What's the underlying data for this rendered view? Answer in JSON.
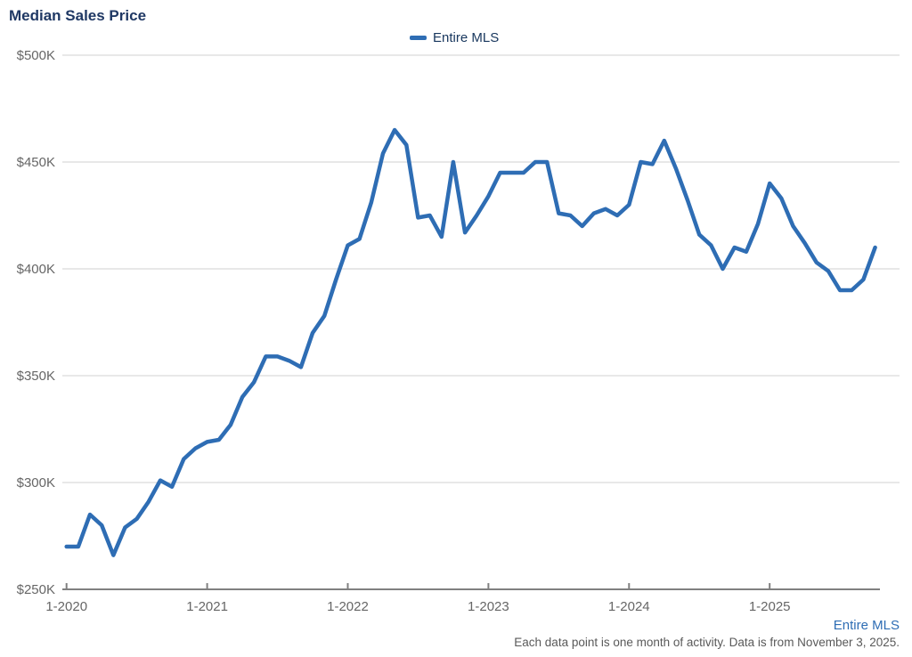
{
  "title": "Median Sales Price",
  "legend": {
    "label": "Entire MLS"
  },
  "footer": {
    "link_label": "Entire MLS",
    "note": "Each data point is one month of activity. Data is from November 3, 2025."
  },
  "colors": {
    "line": "#2e6db4",
    "title": "#1f3864",
    "legend_text": "#17365d",
    "axis_text": "#666666",
    "grid_line": "#d9d9d9",
    "axis_line": "#808080",
    "footer_text": "#595959",
    "link": "#2e6db4",
    "background": "#ffffff"
  },
  "chart_data": {
    "type": "line",
    "title": "Median Sales Price",
    "series_name": "Entire MLS",
    "unit": "USD thousands",
    "ylim": [
      250,
      500
    ],
    "grid": "horizontal",
    "legend_position": "top-center",
    "y_ticks": [
      {
        "value": 250,
        "label": "$250K"
      },
      {
        "value": 300,
        "label": "$300K"
      },
      {
        "value": 350,
        "label": "$350K"
      },
      {
        "value": 400,
        "label": "$400K"
      },
      {
        "value": 450,
        "label": "$450K"
      },
      {
        "value": 500,
        "label": "$500K"
      }
    ],
    "x_ticks": [
      {
        "month_index": 0,
        "label": "1-2020"
      },
      {
        "month_index": 12,
        "label": "1-2021"
      },
      {
        "month_index": 24,
        "label": "1-2022"
      },
      {
        "month_index": 36,
        "label": "1-2023"
      },
      {
        "month_index": 48,
        "label": "1-2024"
      },
      {
        "month_index": 60,
        "label": "1-2025"
      }
    ],
    "months": [
      "1-2020",
      "2-2020",
      "3-2020",
      "4-2020",
      "5-2020",
      "6-2020",
      "7-2020",
      "8-2020",
      "9-2020",
      "10-2020",
      "11-2020",
      "12-2020",
      "1-2021",
      "2-2021",
      "3-2021",
      "4-2021",
      "5-2021",
      "6-2021",
      "7-2021",
      "8-2021",
      "9-2021",
      "10-2021",
      "11-2021",
      "12-2021",
      "1-2022",
      "2-2022",
      "3-2022",
      "4-2022",
      "5-2022",
      "6-2022",
      "7-2022",
      "8-2022",
      "9-2022",
      "10-2022",
      "11-2022",
      "12-2022",
      "1-2023",
      "2-2023",
      "3-2023",
      "4-2023",
      "5-2023",
      "6-2023",
      "7-2023",
      "8-2023",
      "9-2023",
      "10-2023",
      "11-2023",
      "12-2023",
      "1-2024",
      "2-2024",
      "3-2024",
      "4-2024",
      "5-2024",
      "6-2024",
      "7-2024",
      "8-2024",
      "9-2024",
      "10-2024",
      "11-2024",
      "12-2024",
      "1-2025",
      "2-2025",
      "3-2025",
      "4-2025",
      "5-2025",
      "6-2025",
      "7-2025",
      "8-2025",
      "9-2025",
      "10-2025"
    ],
    "values": [
      270,
      270,
      285,
      280,
      266,
      279,
      283,
      291,
      301,
      298,
      311,
      316,
      319,
      320,
      327,
      340,
      347,
      359,
      359,
      357,
      354,
      370,
      378,
      395,
      411,
      414,
      431,
      454,
      465,
      458,
      424,
      425,
      415,
      450,
      417,
      425,
      434,
      445,
      445,
      445,
      450,
      450,
      426,
      425,
      420,
      426,
      428,
      425,
      430,
      450,
      449,
      460,
      447,
      432,
      416,
      411,
      400,
      410,
      408,
      421,
      440,
      433,
      420,
      412,
      403,
      399,
      390,
      390,
      395,
      410
    ]
  }
}
